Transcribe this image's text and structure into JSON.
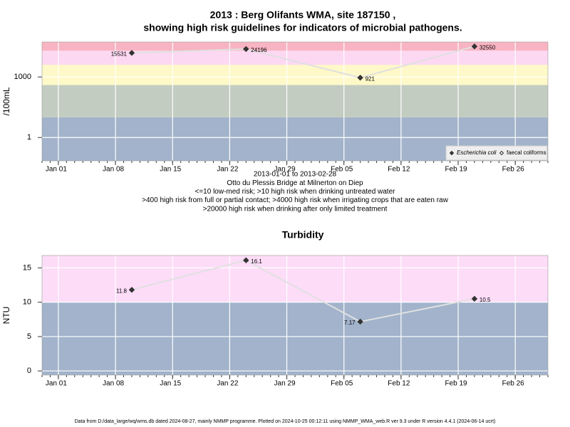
{
  "chart_data": [
    {
      "type": "line",
      "title": [
        "2013 : Berg Olifants WMA, site 187150 ,",
        "showing high risk guidelines for indicators of microbial pathogens."
      ],
      "ylabel": "/100mL",
      "notes": [
        "2013-01-01 to 2013-02-28",
        "Otto du Plessis Bridge at Milnerton on Diep",
        "<=10 low-med risk; >10 high risk when drinking untreated water",
        ">400 high risk from full or partial contact; >4000 high risk when irrigating crops that are eaten raw",
        ">20000 high risk when drinking after only limited treatment"
      ],
      "x": [
        "2013-01-10",
        "2013-01-24",
        "2013-02-07",
        "2013-02-21"
      ],
      "series": [
        {
          "name": "Escherichia coli",
          "color": "#333333",
          "line_color": "#e0e0e0",
          "filled": true,
          "values": [
            15531,
            24196,
            921,
            32550
          ]
        },
        {
          "name": "faecal coliforms",
          "color": "#333333",
          "line_color": "#e0e0e0",
          "filled": false,
          "values": [
            null,
            null,
            null,
            null
          ]
        }
      ],
      "xlim": [
        "2012-12-30",
        "2013-03-02"
      ],
      "xticks": [
        {
          "value": "2013-01-01",
          "label": "Jan 01"
        },
        {
          "value": "2013-01-08",
          "label": "Jan 08"
        },
        {
          "value": "2013-01-15",
          "label": "Jan 15"
        },
        {
          "value": "2013-01-22",
          "label": "Jan 22"
        },
        {
          "value": "2013-01-29",
          "label": "Jan 29"
        },
        {
          "value": "2013-02-05",
          "label": "Feb 05"
        },
        {
          "value": "2013-02-12",
          "label": "Feb 12"
        },
        {
          "value": "2013-02-19",
          "label": "Feb 19"
        },
        {
          "value": "2013-02-26",
          "label": "Feb 26"
        }
      ],
      "ylim": [
        0.07,
        54000
      ],
      "yticks": [
        1,
        1000
      ],
      "log_scale": true,
      "grid": true,
      "legend": "bottomright",
      "band_breaks": [
        10,
        400,
        4000,
        20000
      ],
      "band_colors": [
        "#a2b3cb",
        "#c3ccc1",
        "#fff8c8",
        "#fdd8f2",
        "#f8b4c2"
      ]
    },
    {
      "type": "line",
      "title": [
        "Turbidity"
      ],
      "ylabel": "NTU",
      "x": [
        "2013-01-10",
        "2013-01-24",
        "2013-02-07",
        "2013-02-21"
      ],
      "series": [
        {
          "name": "Turbidity",
          "color": "#333333",
          "line_color": "#e0e0e0",
          "filled": true,
          "values": [
            11.8,
            16.1,
            7.17,
            10.5
          ]
        }
      ],
      "xlim": [
        "2012-12-30",
        "2013-03-02"
      ],
      "xticks": [
        {
          "value": "2013-01-01",
          "label": "Jan 01"
        },
        {
          "value": "2013-01-08",
          "label": "Jan 08"
        },
        {
          "value": "2013-01-15",
          "label": "Jan 15"
        },
        {
          "value": "2013-01-22",
          "label": "Jan 22"
        },
        {
          "value": "2013-01-29",
          "label": "Jan 29"
        },
        {
          "value": "2013-02-05",
          "label": "Feb 05"
        },
        {
          "value": "2013-02-12",
          "label": "Feb 12"
        },
        {
          "value": "2013-02-19",
          "label": "Feb 19"
        },
        {
          "value": "2013-02-26",
          "label": "Feb 26"
        }
      ],
      "ylim": [
        -0.6,
        16.8
      ],
      "yticks": [
        0,
        5,
        10,
        15
      ],
      "log_scale": false,
      "grid": true,
      "band_breaks": [
        10
      ],
      "band_colors": [
        "#a2b3cb",
        "#fddcf8"
      ]
    }
  ],
  "footer": "Data from D:/data_large/wq/wms.db dated 2024-08-27, mainly NMMP programme. Plotted on 2024-10-25 00:12:11 using NMMP_WMA_web.R ver 9.3 under R version 4.4.1 (2024-06-14 ucrt)"
}
